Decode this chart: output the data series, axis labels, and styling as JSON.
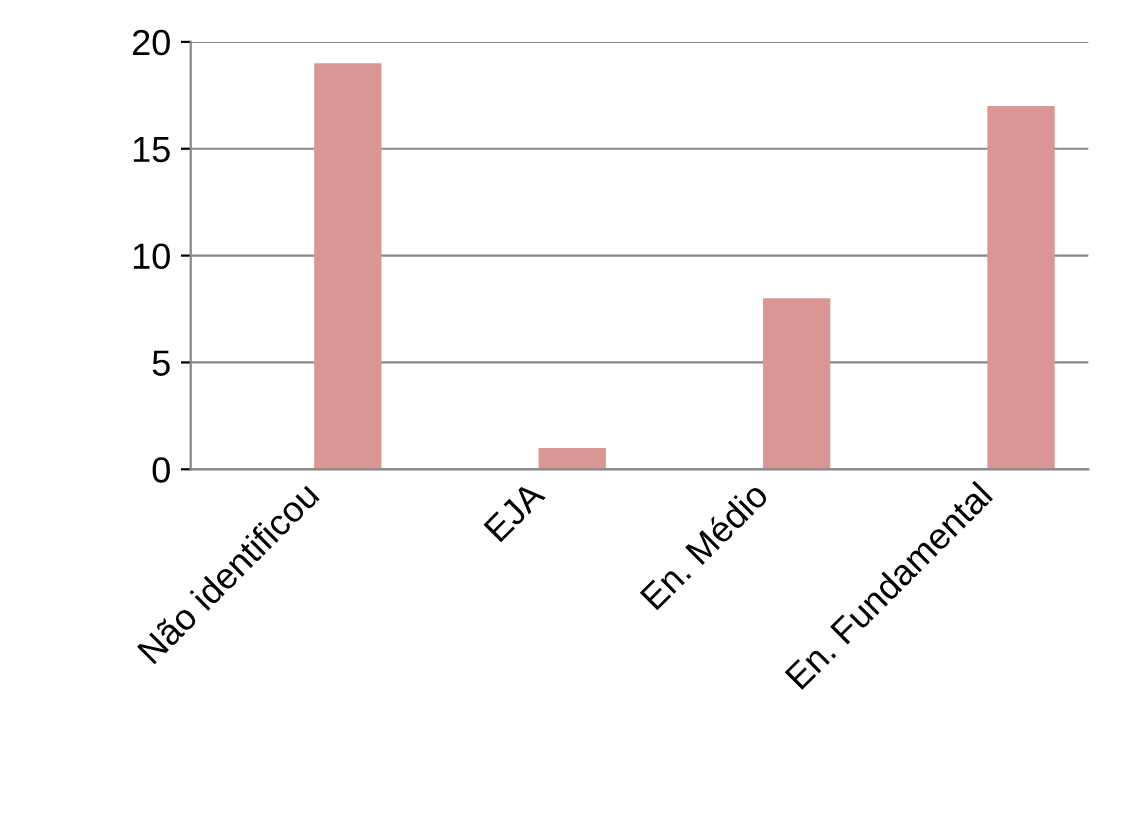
{
  "chart_data": {
    "type": "bar",
    "categories": [
      "Não identificou",
      "EJA",
      "En. Médio",
      "En. Fundamental"
    ],
    "values": [
      19,
      1,
      8,
      17
    ],
    "color": "#d99694",
    "ylim": [
      0,
      20
    ],
    "yticks": [
      0,
      5,
      10,
      15,
      20
    ],
    "grid": "y",
    "legend": false
  }
}
